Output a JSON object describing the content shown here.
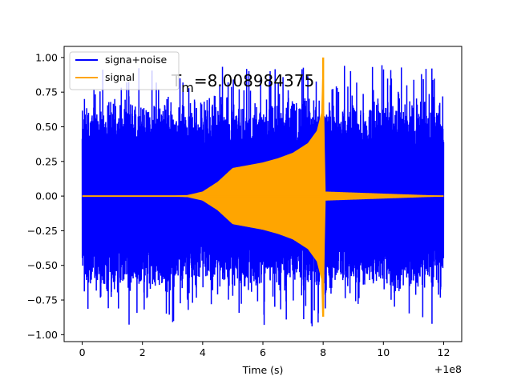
{
  "chart_data": {
    "type": "line",
    "xlabel": "Time (s)",
    "ylabel": "",
    "x_offset_label": "+1e8",
    "annotation": {
      "prefix": "T",
      "subscript": "m",
      "value_text": "=8.008984375"
    },
    "xlim": [
      -0.6,
      12.6
    ],
    "ylim": [
      -1.05,
      1.08
    ],
    "x_ticks": [
      0,
      2,
      4,
      6,
      8,
      10,
      12
    ],
    "x_tick_labels": [
      "0",
      "2",
      "4",
      "6",
      "8",
      "10",
      "12"
    ],
    "y_ticks": [
      1.0,
      0.75,
      0.5,
      0.25,
      0.0,
      -0.25,
      -0.5,
      -0.75,
      -1.0
    ],
    "y_tick_labels": [
      "1.00",
      "0.75",
      "0.50",
      "0.25",
      "0.00",
      "−0.25",
      "−0.50",
      "−0.75",
      "−1.00"
    ],
    "legend": {
      "placement": "upper-left",
      "entries": [
        {
          "label": "signa+noise",
          "color": "#0000ff"
        },
        {
          "label": "signal",
          "color": "#ffa500"
        }
      ]
    },
    "grid": false,
    "series": [
      {
        "name": "signa+noise",
        "color": "#0000ff",
        "description_values": {
          "x_start": 0,
          "x_end": 12,
          "typical_amplitude": 0.45,
          "max_value": 0.99,
          "min_value": -0.95
        }
      },
      {
        "name": "signal",
        "color": "#ffa500",
        "description_values": {
          "x_start": 0,
          "x_end": 12,
          "chirp_peak_time": 8.0,
          "peak_max": 1.0,
          "peak_min": -0.87,
          "envelope": [
            [
              0,
              0.0
            ],
            [
              3.0,
              0.0
            ],
            [
              3.5,
              0.005
            ],
            [
              4.0,
              0.03
            ],
            [
              4.5,
              0.1
            ],
            [
              5.0,
              0.2
            ],
            [
              5.5,
              0.22
            ],
            [
              6.0,
              0.24
            ],
            [
              6.5,
              0.27
            ],
            [
              7.0,
              0.31
            ],
            [
              7.5,
              0.38
            ],
            [
              7.8,
              0.47
            ],
            [
              7.95,
              0.6
            ],
            [
              8.0,
              1.0
            ],
            [
              8.06,
              0.03
            ],
            [
              12,
              0.0
            ]
          ]
        }
      }
    ]
  }
}
